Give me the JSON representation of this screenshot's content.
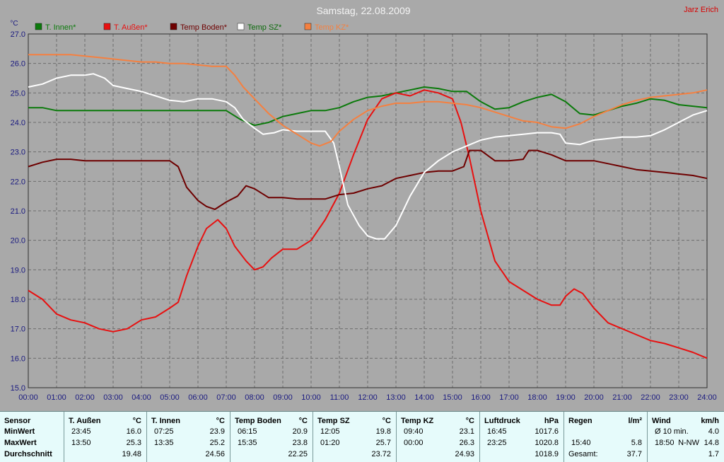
{
  "window": {
    "author": "Jarz Erich",
    "date_title": "Samstag, 22.08.2009"
  },
  "colors": {
    "background": "#a9a9a9",
    "grid": "#6d6d6d",
    "t_innen": "#0b7a0b",
    "t_aussen": "#e81010",
    "temp_boden": "#6e0000",
    "temp_sz": "#ffffff",
    "temp_kz": "#f58040",
    "author": "#d80000",
    "stats_bg": "#e6fbfb"
  },
  "chart_data": {
    "type": "line",
    "title": "Samstag, 22.08.2009",
    "ylabel": "°C",
    "xlabel": "",
    "ylim": [
      15.0,
      27.0
    ],
    "xlim": [
      0,
      24
    ],
    "y_ticks": [
      "15.0",
      "16.0",
      "17.0",
      "18.0",
      "19.0",
      "20.0",
      "21.0",
      "22.0",
      "23.0",
      "24.0",
      "25.0",
      "26.0",
      "27.0"
    ],
    "x_ticks": [
      "00:00",
      "01:00",
      "02:00",
      "03:00",
      "04:00",
      "05:00",
      "06:00",
      "07:00",
      "08:00",
      "09:00",
      "10:00",
      "11:00",
      "12:00",
      "13:00",
      "14:00",
      "15:00",
      "16:00",
      "17:00",
      "18:00",
      "19:00",
      "20:00",
      "21:00",
      "22:00",
      "23:00",
      "24:00"
    ],
    "grid": true,
    "legend_position": "top-left",
    "series": [
      {
        "name": "T. Innen*",
        "color": "#0b7a0b",
        "points": [
          [
            0,
            24.5
          ],
          [
            0.5,
            24.5
          ],
          [
            1,
            24.4
          ],
          [
            2,
            24.4
          ],
          [
            3,
            24.4
          ],
          [
            4,
            24.4
          ],
          [
            5,
            24.4
          ],
          [
            6,
            24.4
          ],
          [
            7,
            24.4
          ],
          [
            7.5,
            24.1
          ],
          [
            8,
            23.9
          ],
          [
            8.5,
            24.0
          ],
          [
            9,
            24.2
          ],
          [
            9.5,
            24.3
          ],
          [
            10,
            24.4
          ],
          [
            10.5,
            24.4
          ],
          [
            11,
            24.5
          ],
          [
            11.5,
            24.7
          ],
          [
            12,
            24.85
          ],
          [
            12.5,
            24.9
          ],
          [
            13,
            25.0
          ],
          [
            13.5,
            25.1
          ],
          [
            14,
            25.2
          ],
          [
            14.5,
            25.15
          ],
          [
            15,
            25.05
          ],
          [
            15.5,
            25.05
          ],
          [
            16,
            24.7
          ],
          [
            16.5,
            24.45
          ],
          [
            17,
            24.5
          ],
          [
            17.5,
            24.7
          ],
          [
            18,
            24.85
          ],
          [
            18.5,
            24.95
          ],
          [
            19,
            24.7
          ],
          [
            19.5,
            24.3
          ],
          [
            20,
            24.25
          ],
          [
            20.5,
            24.4
          ],
          [
            21,
            24.55
          ],
          [
            21.5,
            24.65
          ],
          [
            22,
            24.8
          ],
          [
            22.5,
            24.75
          ],
          [
            23,
            24.6
          ],
          [
            23.5,
            24.55
          ],
          [
            24,
            24.5
          ]
        ]
      },
      {
        "name": "T. Außen*",
        "color": "#e81010",
        "points": [
          [
            0,
            18.3
          ],
          [
            0.5,
            18.0
          ],
          [
            1,
            17.5
          ],
          [
            1.5,
            17.3
          ],
          [
            2,
            17.2
          ],
          [
            2.5,
            17.0
          ],
          [
            3,
            16.9
          ],
          [
            3.5,
            17.0
          ],
          [
            4,
            17.3
          ],
          [
            4.5,
            17.4
          ],
          [
            5,
            17.7
          ],
          [
            5.3,
            17.9
          ],
          [
            5.6,
            18.8
          ],
          [
            6,
            19.8
          ],
          [
            6.3,
            20.4
          ],
          [
            6.7,
            20.7
          ],
          [
            7,
            20.4
          ],
          [
            7.3,
            19.8
          ],
          [
            7.7,
            19.3
          ],
          [
            8,
            19.0
          ],
          [
            8.3,
            19.1
          ],
          [
            8.6,
            19.4
          ],
          [
            9,
            19.7
          ],
          [
            9.5,
            19.7
          ],
          [
            10,
            20.0
          ],
          [
            10.5,
            20.7
          ],
          [
            11,
            21.6
          ],
          [
            11.5,
            22.9
          ],
          [
            12,
            24.1
          ],
          [
            12.5,
            24.8
          ],
          [
            13,
            25.0
          ],
          [
            13.5,
            24.9
          ],
          [
            14,
            25.1
          ],
          [
            14.5,
            25.0
          ],
          [
            15,
            24.8
          ],
          [
            15.3,
            24.0
          ],
          [
            15.6,
            22.8
          ],
          [
            16,
            21.0
          ],
          [
            16.5,
            19.3
          ],
          [
            17,
            18.6
          ],
          [
            17.5,
            18.3
          ],
          [
            18,
            18.0
          ],
          [
            18.5,
            17.8
          ],
          [
            18.8,
            17.8
          ],
          [
            19,
            18.1
          ],
          [
            19.3,
            18.35
          ],
          [
            19.6,
            18.2
          ],
          [
            20,
            17.7
          ],
          [
            20.5,
            17.2
          ],
          [
            21,
            17.0
          ],
          [
            21.5,
            16.8
          ],
          [
            22,
            16.6
          ],
          [
            22.5,
            16.5
          ],
          [
            23,
            16.35
          ],
          [
            23.5,
            16.2
          ],
          [
            24,
            16.0
          ]
        ]
      },
      {
        "name": "Temp Boden*",
        "color": "#6e0000",
        "points": [
          [
            0,
            22.5
          ],
          [
            0.5,
            22.65
          ],
          [
            1,
            22.75
          ],
          [
            1.5,
            22.75
          ],
          [
            2,
            22.7
          ],
          [
            2.5,
            22.7
          ],
          [
            3,
            22.7
          ],
          [
            3.5,
            22.7
          ],
          [
            4,
            22.7
          ],
          [
            4.5,
            22.7
          ],
          [
            5,
            22.7
          ],
          [
            5.3,
            22.5
          ],
          [
            5.6,
            21.8
          ],
          [
            6,
            21.35
          ],
          [
            6.3,
            21.15
          ],
          [
            6.6,
            21.05
          ],
          [
            7,
            21.3
          ],
          [
            7.4,
            21.5
          ],
          [
            7.7,
            21.85
          ],
          [
            8,
            21.75
          ],
          [
            8.5,
            21.45
          ],
          [
            9,
            21.45
          ],
          [
            9.5,
            21.4
          ],
          [
            10,
            21.4
          ],
          [
            10.5,
            21.4
          ],
          [
            11,
            21.55
          ],
          [
            11.5,
            21.6
          ],
          [
            12,
            21.75
          ],
          [
            12.5,
            21.85
          ],
          [
            13,
            22.1
          ],
          [
            13.5,
            22.2
          ],
          [
            14,
            22.3
          ],
          [
            14.5,
            22.35
          ],
          [
            15,
            22.35
          ],
          [
            15.4,
            22.5
          ],
          [
            15.6,
            23.05
          ],
          [
            16,
            23.05
          ],
          [
            16.5,
            22.7
          ],
          [
            17,
            22.7
          ],
          [
            17.5,
            22.75
          ],
          [
            17.7,
            23.05
          ],
          [
            18,
            23.05
          ],
          [
            18.5,
            22.9
          ],
          [
            19,
            22.7
          ],
          [
            19.5,
            22.7
          ],
          [
            20,
            22.7
          ],
          [
            20.5,
            22.6
          ],
          [
            21,
            22.5
          ],
          [
            21.5,
            22.4
          ],
          [
            22,
            22.35
          ],
          [
            22.5,
            22.3
          ],
          [
            23,
            22.25
          ],
          [
            23.5,
            22.2
          ],
          [
            24,
            22.1
          ]
        ]
      },
      {
        "name": "Temp SZ*",
        "color": "#ffffff",
        "points": [
          [
            0,
            25.2
          ],
          [
            0.5,
            25.3
          ],
          [
            1,
            25.5
          ],
          [
            1.5,
            25.6
          ],
          [
            2,
            25.6
          ],
          [
            2.3,
            25.65
          ],
          [
            2.7,
            25.5
          ],
          [
            3,
            25.25
          ],
          [
            3.5,
            25.15
          ],
          [
            4,
            25.05
          ],
          [
            4.5,
            24.9
          ],
          [
            5,
            24.75
          ],
          [
            5.5,
            24.7
          ],
          [
            6,
            24.8
          ],
          [
            6.5,
            24.8
          ],
          [
            7,
            24.7
          ],
          [
            7.3,
            24.5
          ],
          [
            7.6,
            24.1
          ],
          [
            8,
            23.8
          ],
          [
            8.3,
            23.6
          ],
          [
            8.7,
            23.65
          ],
          [
            9,
            23.75
          ],
          [
            9.5,
            23.7
          ],
          [
            10,
            23.7
          ],
          [
            10.5,
            23.7
          ],
          [
            10.8,
            23.3
          ],
          [
            11,
            22.5
          ],
          [
            11.3,
            21.2
          ],
          [
            11.7,
            20.5
          ],
          [
            12,
            20.15
          ],
          [
            12.3,
            20.05
          ],
          [
            12.6,
            20.05
          ],
          [
            13,
            20.5
          ],
          [
            13.5,
            21.5
          ],
          [
            14,
            22.3
          ],
          [
            14.5,
            22.7
          ],
          [
            15,
            23.0
          ],
          [
            15.5,
            23.2
          ],
          [
            16,
            23.4
          ],
          [
            16.5,
            23.5
          ],
          [
            17,
            23.55
          ],
          [
            17.5,
            23.6
          ],
          [
            18,
            23.65
          ],
          [
            18.5,
            23.65
          ],
          [
            18.8,
            23.6
          ],
          [
            19,
            23.3
          ],
          [
            19.5,
            23.25
          ],
          [
            20,
            23.4
          ],
          [
            20.5,
            23.45
          ],
          [
            21,
            23.5
          ],
          [
            21.5,
            23.5
          ],
          [
            22,
            23.55
          ],
          [
            22.5,
            23.75
          ],
          [
            23,
            24.0
          ],
          [
            23.5,
            24.25
          ],
          [
            24,
            24.4
          ]
        ]
      },
      {
        "name": "Temp KZ*",
        "color": "#f58040",
        "points": [
          [
            0,
            26.3
          ],
          [
            0.5,
            26.3
          ],
          [
            1,
            26.3
          ],
          [
            1.5,
            26.3
          ],
          [
            2,
            26.25
          ],
          [
            2.5,
            26.2
          ],
          [
            3,
            26.15
          ],
          [
            3.5,
            26.1
          ],
          [
            4,
            26.05
          ],
          [
            4.5,
            26.05
          ],
          [
            5,
            26.0
          ],
          [
            5.5,
            26.0
          ],
          [
            6,
            25.95
          ],
          [
            6.5,
            25.9
          ],
          [
            7,
            25.9
          ],
          [
            7.3,
            25.6
          ],
          [
            7.6,
            25.2
          ],
          [
            8,
            24.8
          ],
          [
            8.5,
            24.3
          ],
          [
            9,
            23.9
          ],
          [
            9.5,
            23.6
          ],
          [
            10,
            23.3
          ],
          [
            10.3,
            23.2
          ],
          [
            10.7,
            23.35
          ],
          [
            11,
            23.7
          ],
          [
            11.5,
            24.1
          ],
          [
            12,
            24.4
          ],
          [
            12.5,
            24.55
          ],
          [
            13,
            24.65
          ],
          [
            13.5,
            24.65
          ],
          [
            14,
            24.7
          ],
          [
            14.5,
            24.7
          ],
          [
            15,
            24.65
          ],
          [
            15.5,
            24.6
          ],
          [
            16,
            24.5
          ],
          [
            16.5,
            24.35
          ],
          [
            17,
            24.2
          ],
          [
            17.5,
            24.05
          ],
          [
            18,
            24.0
          ],
          [
            18.5,
            23.85
          ],
          [
            19,
            23.8
          ],
          [
            19.5,
            23.95
          ],
          [
            20,
            24.2
          ],
          [
            20.5,
            24.4
          ],
          [
            21,
            24.6
          ],
          [
            21.5,
            24.75
          ],
          [
            22,
            24.85
          ],
          [
            22.5,
            24.9
          ],
          [
            23,
            24.95
          ],
          [
            23.5,
            25.0
          ],
          [
            24,
            25.1
          ]
        ]
      }
    ]
  },
  "stats": {
    "columns": [
      {
        "title": "Sensor",
        "unit": "",
        "rows": [
          "MinWert",
          "MaxWert",
          "Durchschnitt"
        ]
      },
      {
        "title": "T. Außen",
        "unit": "°C",
        "min_time": "23:45",
        "min": "16.0",
        "max_time": "13:50",
        "max": "25.3",
        "avg": "19.48"
      },
      {
        "title": "T. Innen",
        "unit": "°C",
        "min_time": "07:25",
        "min": "23.9",
        "max_time": "13:35",
        "max": "25.2",
        "avg": "24.56"
      },
      {
        "title": "Temp Boden",
        "unit": "°C",
        "min_time": "06:15",
        "min": "20.9",
        "max_time": "15:35",
        "max": "23.8",
        "avg": "22.25"
      },
      {
        "title": "Temp SZ",
        "unit": "°C",
        "min_time": "12:05",
        "min": "19.8",
        "max_time": "01:20",
        "max": "25.7",
        "avg": "23.72"
      },
      {
        "title": "Temp KZ",
        "unit": "°C",
        "min_time": "09:40",
        "min": "23.1",
        "max_time": "00:00",
        "max": "26.3",
        "avg": "24.93"
      },
      {
        "title": "Luftdruck",
        "unit": "hPa",
        "min_time": "16:45",
        "min": "1017.6",
        "max_time": "23:25",
        "max": "1020.8",
        "avg": "1018.9"
      },
      {
        "title": "Regen",
        "unit": "l/m²",
        "min_time": "",
        "min": "",
        "max_time": "15:40",
        "max": "5.8",
        "avg_label": "Gesamt:",
        "avg": "37.7"
      },
      {
        "title": "Wind",
        "unit": "km/h",
        "min_time": "Ø 10 min.",
        "min": "4.0",
        "max_time": "18:50",
        "max_dir": "N-NW",
        "max": "14.8",
        "avg": "1.7"
      }
    ]
  }
}
